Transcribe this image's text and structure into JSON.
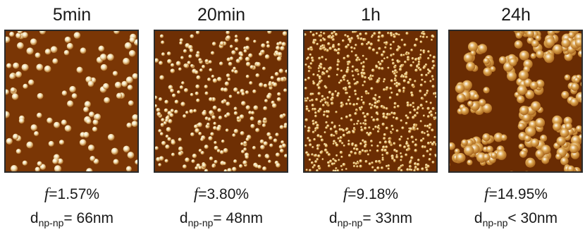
{
  "panels": [
    {
      "time": "5min",
      "f_symbol": "f",
      "f_value": "=1.57%",
      "d_main": "d",
      "d_sub": "np-np",
      "d_value": "= 66nm",
      "bg": "#7a3605",
      "particle": "#f3e2b6",
      "count": 120,
      "minR": 3.6,
      "maxR": 5.2,
      "clusters": false
    },
    {
      "time": "20min",
      "f_symbol": "f",
      "f_value": "=3.80%",
      "d_main": "d",
      "d_sub": "np-np",
      "d_value": "= 48nm",
      "bg": "#6e2f04",
      "particle": "#f0d9a2",
      "count": 330,
      "minR": 2.3,
      "maxR": 3.5,
      "clusters": false
    },
    {
      "time": "1h",
      "f_symbol": "f",
      "f_value": "=9.18%",
      "d_main": "d",
      "d_sub": "np-np",
      "d_value": "= 33nm",
      "bg": "#6b2d03",
      "particle": "#e9c679",
      "count": 820,
      "minR": 1.5,
      "maxR": 2.4,
      "clusters": false
    },
    {
      "time": "24h",
      "f_symbol": "f",
      "f_value": "=14.95%",
      "d_main": "d",
      "d_sub": "np-np",
      "d_value": "< 30nm",
      "bg": "#6a2c03",
      "particle": "#dba550",
      "count": 260,
      "minR": 4.0,
      "maxR": 7.5,
      "clusters": true
    }
  ]
}
